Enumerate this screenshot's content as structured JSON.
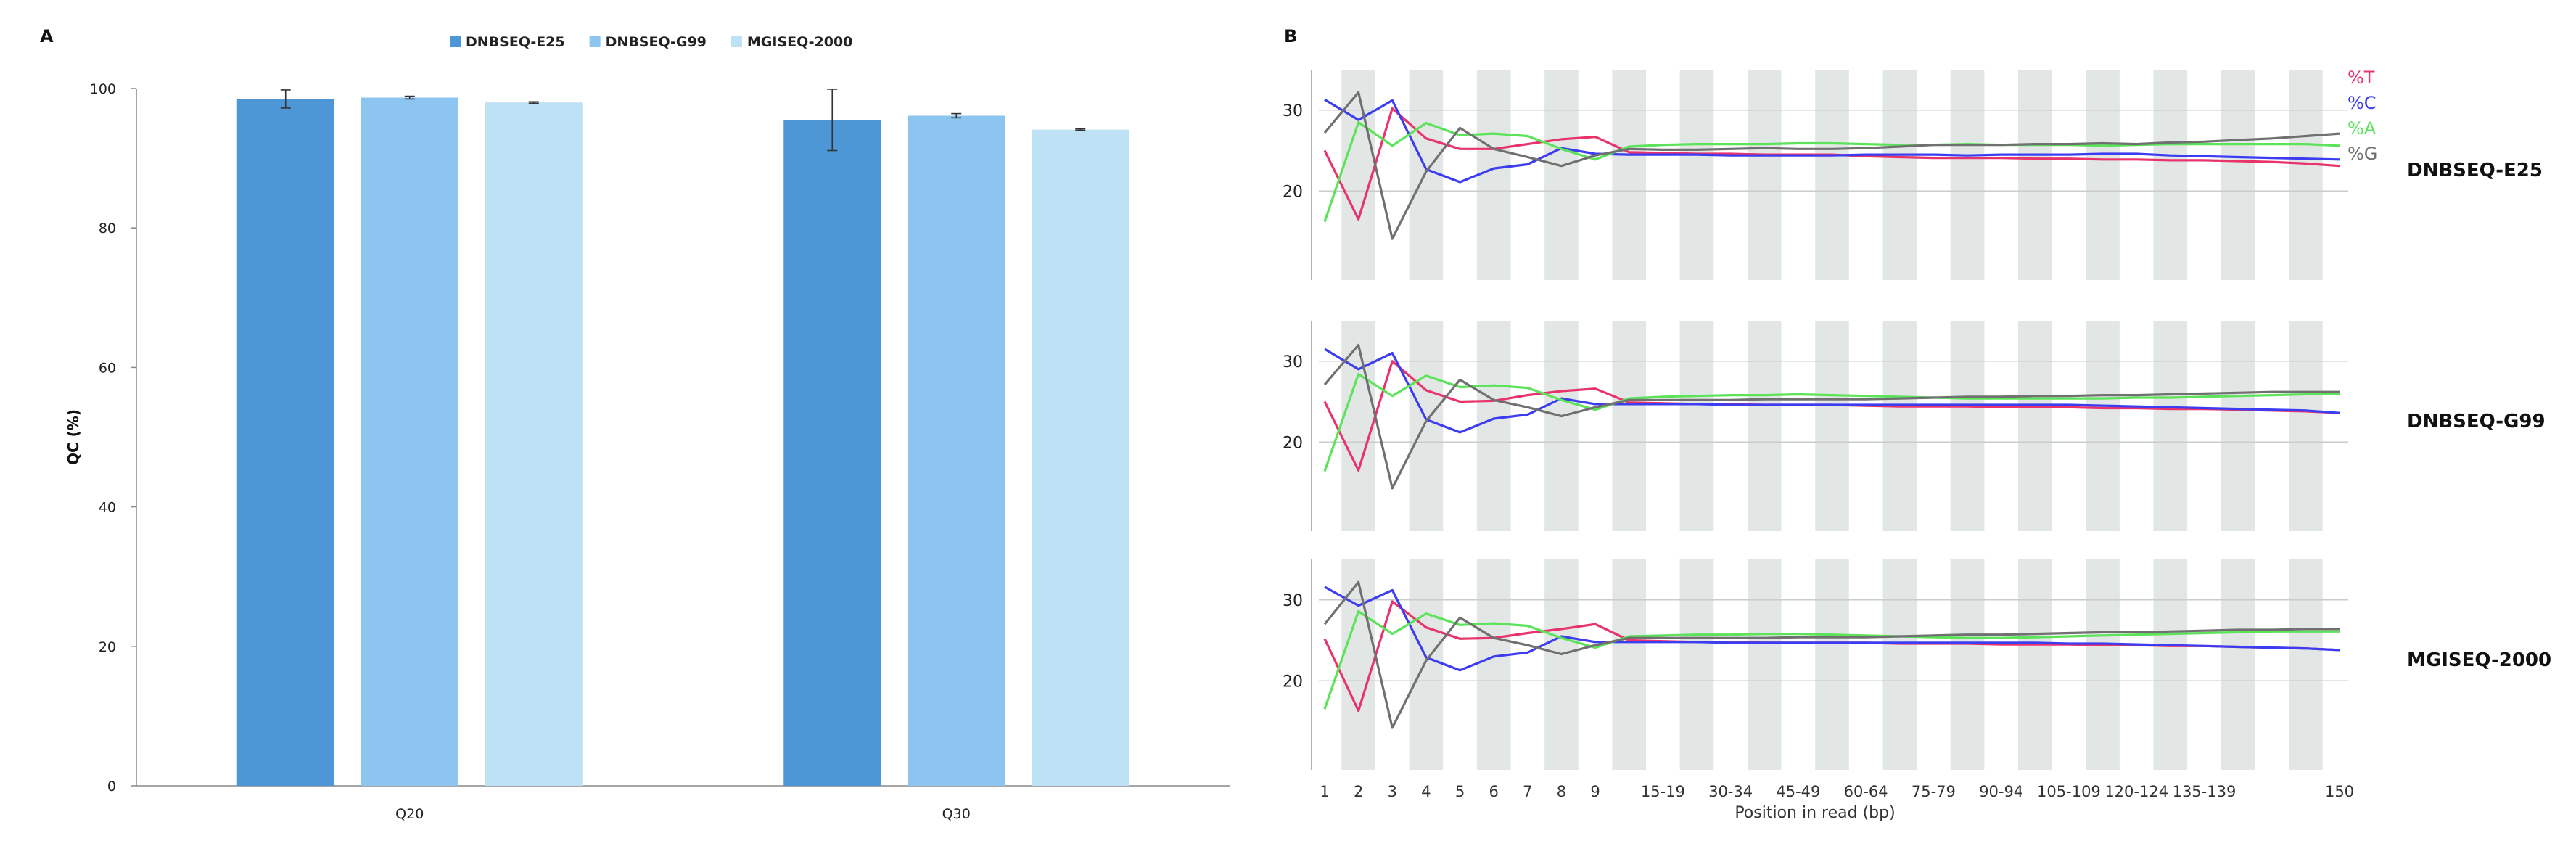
{
  "panel_a_letter": "A",
  "panel_b_letter": "B",
  "colors": {
    "DNBSEQ-E25": "#4d97d6",
    "DNBSEQ-G99": "#8cc5ef",
    "MGISEQ-2000": "#bde2f5",
    "T": "#e8336b",
    "C": "#3c3cf0",
    "A": "#5ce35a",
    "G": "#707070",
    "band": "#e2e7e6"
  },
  "chart_data": [
    {
      "type": "bar",
      "categories": [
        "Q20",
        "Q30"
      ],
      "series": [
        {
          "name": "DNBSEQ-E25",
          "values": [
            98.5,
            95.5
          ],
          "error": [
            1.3,
            4.4
          ]
        },
        {
          "name": "DNBSEQ-G99",
          "values": [
            98.7,
            96.1
          ],
          "error": [
            0.2,
            0.3
          ]
        },
        {
          "name": "MGISEQ-2000",
          "values": [
            98.0,
            94.1
          ],
          "error": [
            0.1,
            0.1
          ]
        }
      ],
      "ylabel": "QC (%)",
      "ylim": [
        0,
        100
      ],
      "yticks": [
        "0",
        "20",
        "40",
        "60",
        "80",
        "100"
      ],
      "legend_position": "top-center",
      "grid": false
    },
    {
      "type": "line",
      "xlabel": "Position in read (bp)",
      "xticks": [
        "1",
        "2",
        "3",
        "4",
        "5",
        "6",
        "7",
        "8",
        "9",
        "15-19",
        "30-34",
        "45-49",
        "60-64",
        "75-79",
        "90-94",
        "105-109",
        "120-124",
        "135-139",
        "150"
      ],
      "yticks": [
        "20",
        "30"
      ],
      "legend": [
        "%T",
        "%C",
        "%A",
        "%G"
      ],
      "legend_position": "top-right",
      "panels": [
        {
          "label": "DNBSEQ-E25",
          "series": [
            {
              "name": "%T",
              "values": [
                25,
                16.5,
                30.2,
                26.5,
                25.2,
                25.2,
                25.8,
                26.4,
                26.7,
                24.8,
                24.7,
                24.6,
                24.6,
                24.5,
                24.5,
                24.5,
                24.3,
                24.2,
                24.1,
                24.1,
                24.1,
                24.0,
                24.0,
                23.9,
                23.9,
                23.8,
                23.8,
                23.7,
                23.6,
                23.4,
                23.1
              ]
            },
            {
              "name": "%C",
              "values": [
                31.3,
                28.8,
                31.2,
                22.7,
                21.1,
                22.8,
                23.3,
                25.3,
                24.6,
                24.5,
                24.5,
                24.5,
                24.4,
                24.4,
                24.4,
                24.4,
                24.5,
                24.5,
                24.5,
                24.4,
                24.5,
                24.5,
                24.5,
                24.6,
                24.6,
                24.4,
                24.3,
                24.2,
                24.1,
                24.0,
                23.9
              ]
            },
            {
              "name": "%A",
              "values": [
                16.2,
                28.5,
                25.6,
                28.4,
                26.9,
                27.1,
                26.8,
                25.2,
                23.9,
                25.5,
                25.7,
                25.8,
                25.8,
                25.8,
                25.9,
                25.9,
                25.8,
                25.7,
                25.7,
                25.8,
                25.7,
                25.7,
                25.7,
                25.6,
                25.7,
                25.8,
                25.8,
                25.8,
                25.8,
                25.8,
                25.6
              ]
            },
            {
              "name": "%G",
              "values": [
                27.2,
                32.2,
                14.1,
                22.4,
                27.8,
                25.2,
                24.2,
                23.1,
                24.4,
                25.2,
                25.1,
                25.1,
                25.2,
                25.3,
                25.2,
                25.2,
                25.3,
                25.5,
                25.7,
                25.7,
                25.7,
                25.8,
                25.8,
                25.9,
                25.8,
                26.0,
                26.1,
                26.3,
                26.5,
                26.8,
                27.1
              ]
            }
          ]
        },
        {
          "label": "DNBSEQ-G99",
          "series": [
            {
              "name": "%T",
              "values": [
                25,
                16.5,
                30.0,
                26.4,
                25.0,
                25.1,
                25.8,
                26.3,
                26.6,
                24.9,
                24.8,
                24.7,
                24.7,
                24.6,
                24.6,
                24.6,
                24.5,
                24.4,
                24.4,
                24.4,
                24.3,
                24.3,
                24.3,
                24.2,
                24.2,
                24.1,
                24.1,
                24.0,
                23.9,
                23.8,
                23.6
              ]
            },
            {
              "name": "%C",
              "values": [
                31.5,
                29.0,
                31.0,
                22.8,
                21.2,
                22.9,
                23.4,
                25.4,
                24.7,
                24.7,
                24.7,
                24.7,
                24.6,
                24.6,
                24.6,
                24.6,
                24.6,
                24.6,
                24.6,
                24.6,
                24.6,
                24.6,
                24.6,
                24.5,
                24.4,
                24.3,
                24.2,
                24.1,
                24.0,
                23.9,
                23.6
              ]
            },
            {
              "name": "%A",
              "values": [
                16.4,
                28.4,
                25.7,
                28.2,
                26.8,
                27.0,
                26.7,
                25.2,
                24.0,
                25.4,
                25.6,
                25.7,
                25.8,
                25.8,
                25.9,
                25.8,
                25.7,
                25.6,
                25.5,
                25.4,
                25.4,
                25.4,
                25.4,
                25.4,
                25.5,
                25.5,
                25.6,
                25.7,
                25.8,
                25.9,
                26.0
              ]
            },
            {
              "name": "%G",
              "values": [
                27.1,
                32.0,
                14.3,
                22.6,
                27.7,
                25.2,
                24.3,
                23.2,
                24.3,
                25.2,
                25.2,
                25.2,
                25.2,
                25.3,
                25.3,
                25.3,
                25.3,
                25.4,
                25.5,
                25.6,
                25.6,
                25.7,
                25.7,
                25.8,
                25.8,
                25.9,
                26.0,
                26.1,
                26.2,
                26.2,
                26.2
              ]
            }
          ]
        },
        {
          "label": "MGISEQ-2000",
          "series": [
            {
              "name": "%T",
              "values": [
                25.2,
                16.3,
                29.8,
                26.6,
                25.2,
                25.3,
                25.9,
                26.4,
                27.0,
                25.0,
                24.9,
                24.8,
                24.8,
                24.7,
                24.7,
                24.7,
                24.7,
                24.6,
                24.6,
                24.6,
                24.5,
                24.5,
                24.5,
                24.4,
                24.4,
                24.3,
                24.3,
                24.2,
                24.1,
                24.0,
                23.8
              ]
            },
            {
              "name": "%C",
              "values": [
                31.6,
                29.3,
                31.2,
                22.9,
                21.3,
                23.0,
                23.5,
                25.5,
                24.8,
                24.8,
                24.8,
                24.8,
                24.7,
                24.7,
                24.7,
                24.7,
                24.7,
                24.7,
                24.7,
                24.7,
                24.7,
                24.7,
                24.6,
                24.6,
                24.5,
                24.4,
                24.3,
                24.2,
                24.1,
                24.0,
                23.8
              ]
            },
            {
              "name": "%A",
              "values": [
                16.5,
                28.6,
                25.8,
                28.3,
                26.9,
                27.1,
                26.8,
                25.3,
                24.1,
                25.5,
                25.6,
                25.7,
                25.7,
                25.8,
                25.8,
                25.7,
                25.6,
                25.5,
                25.4,
                25.3,
                25.3,
                25.4,
                25.5,
                25.6,
                25.7,
                25.8,
                25.9,
                26.0,
                26.1,
                26.1,
                26.1
              ]
            },
            {
              "name": "%G",
              "values": [
                27.0,
                32.2,
                14.2,
                22.5,
                27.8,
                25.3,
                24.4,
                23.3,
                24.4,
                25.3,
                25.3,
                25.3,
                25.3,
                25.3,
                25.4,
                25.4,
                25.4,
                25.5,
                25.6,
                25.7,
                25.7,
                25.8,
                25.9,
                26.0,
                26.0,
                26.1,
                26.2,
                26.3,
                26.3,
                26.4,
                26.4
              ]
            }
          ]
        }
      ]
    }
  ]
}
